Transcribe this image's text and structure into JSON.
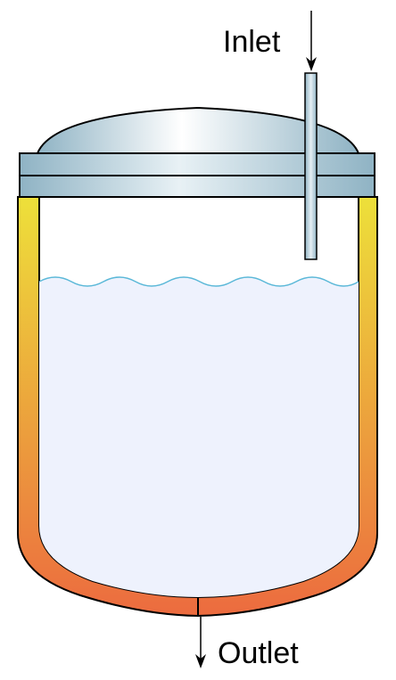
{
  "labels": {
    "inlet": "Inlet",
    "outlet": "Outlet"
  },
  "colors": {
    "jacket_top": "#ede03a",
    "jacket_bottom": "#ec6b3f",
    "liquid": "#eef2fd",
    "wave": "#5bb8d8",
    "lid_light": "#ffffff",
    "lid_dark": "#8fb3c4",
    "outline": "#000000"
  }
}
